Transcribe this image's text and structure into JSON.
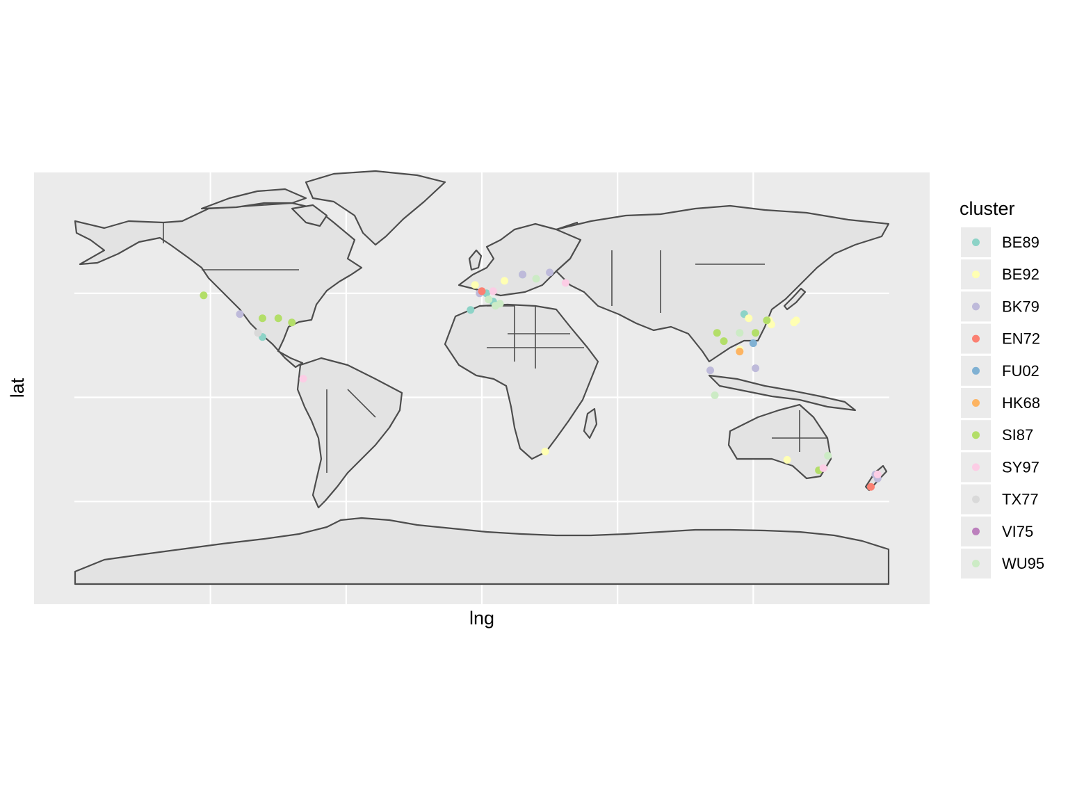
{
  "chart_data": {
    "type": "scatter",
    "xlabel": "lng",
    "ylabel": "lat",
    "xlim": [
      -180,
      180
    ],
    "ylim": [
      -90,
      84
    ],
    "grid": true,
    "legend": {
      "title": "cluster",
      "placement": "right"
    },
    "series": [
      {
        "name": "BE89",
        "color": "#8DD3C7",
        "points": [
          [
            2,
            50
          ],
          [
            5,
            46
          ],
          [
            -5,
            42
          ],
          [
            18,
            59
          ],
          [
            116,
            40
          ],
          [
            -97,
            29
          ]
        ]
      },
      {
        "name": "BE92",
        "color": "#FFFFB3",
        "points": [
          [
            -3,
            54
          ],
          [
            10,
            56
          ],
          [
            118,
            38
          ],
          [
            127,
            37
          ],
          [
            138,
            36
          ],
          [
            139,
            37
          ],
          [
            128,
            35
          ],
          [
            28,
            -26
          ],
          [
            135,
            -30
          ],
          [
            114,
            23
          ]
        ]
      },
      {
        "name": "BK79",
        "color": "#BEBADA",
        "points": [
          [
            18,
            59
          ],
          [
            30,
            60
          ],
          [
            -107,
            40
          ],
          [
            101,
            13
          ],
          [
            121,
            14
          ],
          [
            -1,
            50
          ],
          [
            174,
            -37
          ],
          [
            175,
            -39
          ]
        ]
      },
      {
        "name": "EN72",
        "color": "#FB8072",
        "points": [
          [
            0,
            51
          ],
          [
            172,
            -43
          ]
        ]
      },
      {
        "name": "FU02",
        "color": "#80B1D3",
        "points": [
          [
            120,
            26
          ]
        ]
      },
      {
        "name": "HK68",
        "color": "#FDB462",
        "points": [
          [
            114,
            22
          ]
        ]
      },
      {
        "name": "SI87",
        "color": "#B3DE69",
        "points": [
          [
            -123,
            49
          ],
          [
            -97,
            38
          ],
          [
            -90,
            38
          ],
          [
            -84,
            36
          ],
          [
            104,
            31
          ],
          [
            107,
            27
          ],
          [
            121,
            31
          ],
          [
            126,
            37
          ],
          [
            149,
            -35
          ]
        ]
      },
      {
        "name": "SY97",
        "color": "#FCCDE5",
        "points": [
          [
            37,
            55
          ],
          [
            5,
            51
          ],
          [
            -79,
            9
          ],
          [
            175,
            -37
          ],
          [
            151,
            -34
          ]
        ]
      },
      {
        "name": "TX77",
        "color": "#D9D9D9",
        "points": [
          [
            -99,
            31
          ]
        ]
      },
      {
        "name": "VI75",
        "color": "#BC80BD",
        "points": []
      },
      {
        "name": "WU95",
        "color": "#CCEBC5",
        "points": [
          [
            24,
            57
          ],
          [
            6,
            44
          ],
          [
            8,
            45
          ],
          [
            3,
            47
          ],
          [
            114,
            31
          ],
          [
            103,
            1
          ],
          [
            153,
            -28
          ]
        ]
      }
    ]
  }
}
